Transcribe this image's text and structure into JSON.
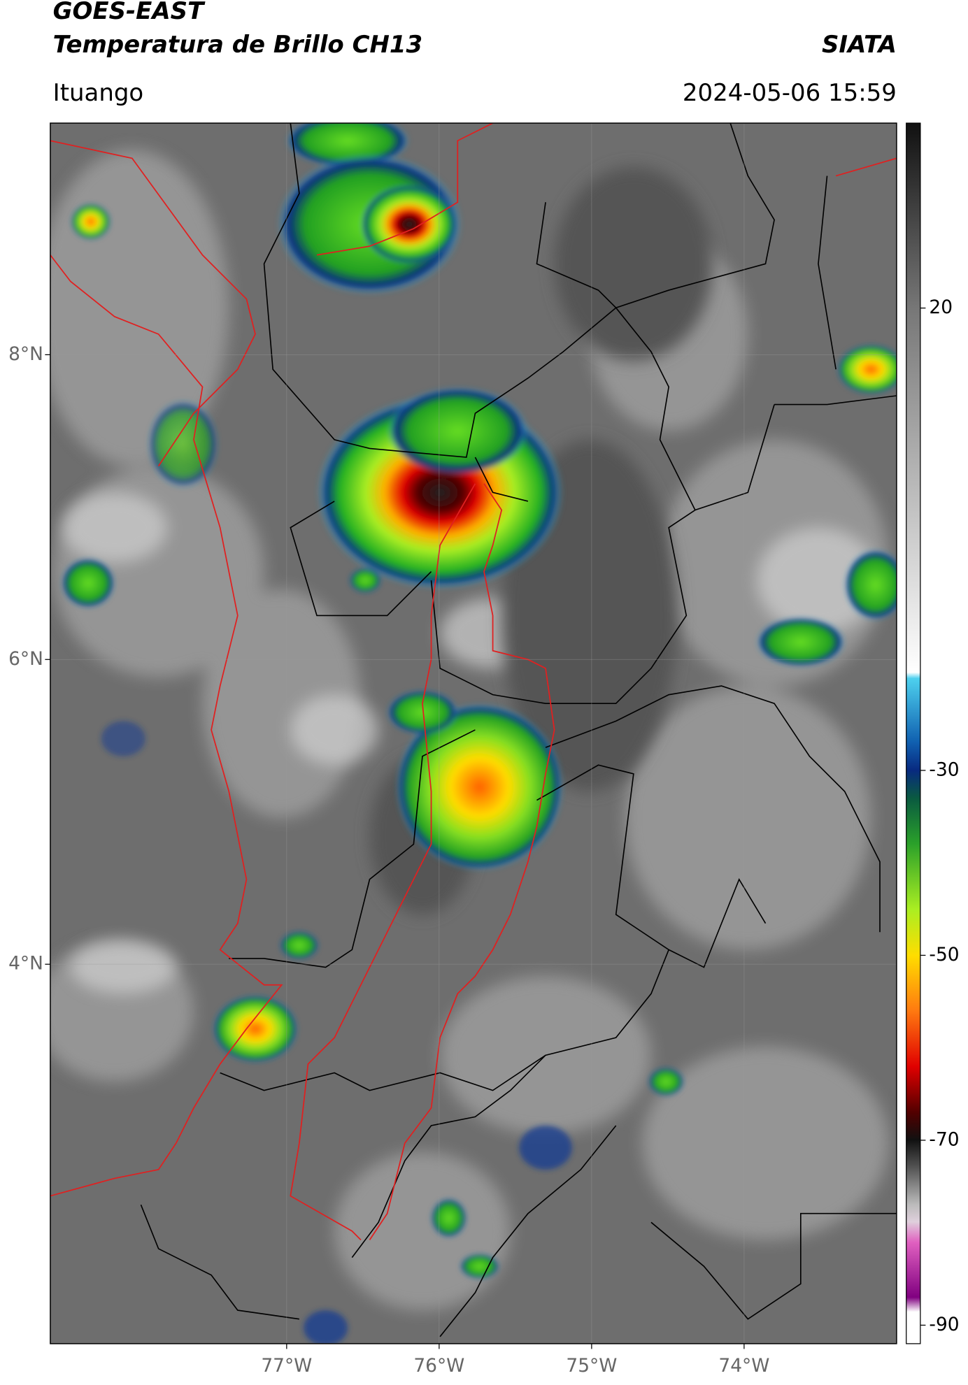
{
  "header": {
    "line1": "GOES-EAST",
    "line2": "Temperatura de Brillo CH13",
    "source": "SIATA",
    "location": "Ituango",
    "datetime": "2024-05-06 15:59"
  },
  "map": {
    "xlim": [
      -78.55,
      -73.0
    ],
    "ylim": [
      1.51,
      9.52
    ],
    "xticks": [
      {
        "value": -77,
        "label": "77°W"
      },
      {
        "value": -76,
        "label": "76°W"
      },
      {
        "value": -75,
        "label": "75°W"
      },
      {
        "value": -74,
        "label": "74°W"
      }
    ],
    "yticks": [
      {
        "value": 8,
        "label": "8°N"
      },
      {
        "value": 6,
        "label": "6°N"
      },
      {
        "value": 4,
        "label": "4°N"
      }
    ],
    "grid": true
  },
  "colorbar": {
    "clim": [
      -92,
      40
    ],
    "ticks": [
      20,
      -30,
      -50,
      -70,
      -90
    ]
  }
}
